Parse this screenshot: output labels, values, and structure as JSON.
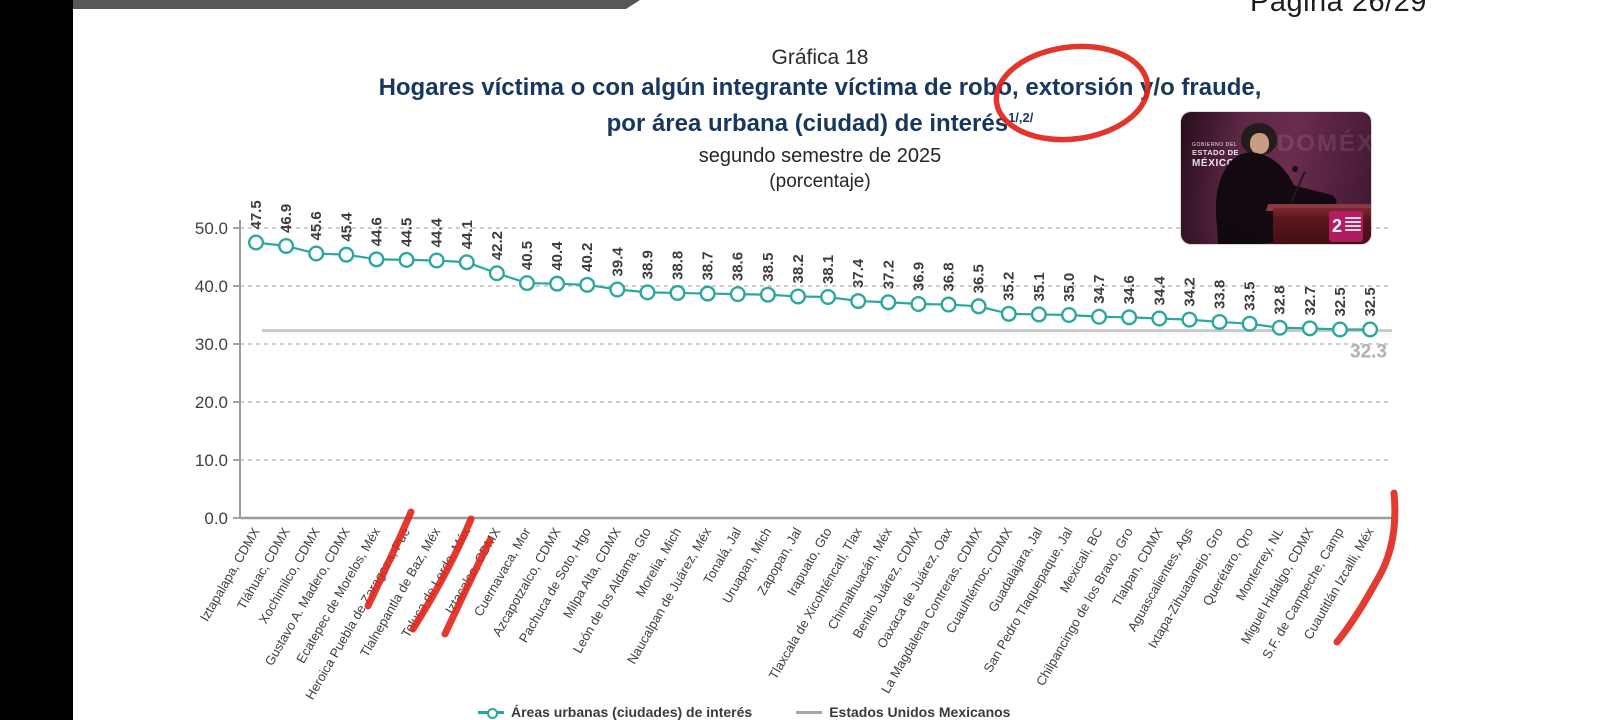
{
  "page": {
    "number_label": "Página 26/29"
  },
  "title": {
    "pretitle": "Gráfica 18",
    "line1": "Hogares víctima o con algún integrante víctima de robo, extorsión y/o fraude,",
    "line2": "por área urbana (ciudad) de interés",
    "footnote_marks": "1/,2/",
    "subtitle": "segundo semestre de 2025",
    "unit": "(porcentaje)"
  },
  "legend": {
    "series": "Áreas urbanas (ciudades) de interés",
    "reference": "Estados Unidos Mexicanos"
  },
  "photo": {
    "caption_lines": [
      "GOBIERNO DEL",
      "ESTADO DE",
      "MÉXICO"
    ],
    "sign": "2"
  },
  "annotations": {
    "circled_word": "extorsión",
    "underlined_categories": [
      "Ecatepec de Morelos, Méx",
      "Tlalnepantla de Baz, Méx",
      "Toluca de Lerdo, Méx",
      "Cuautitlán Izcalli, Méx"
    ],
    "marker_color": "#e0251b"
  },
  "chart_data": {
    "type": "line",
    "title": "Hogares víctima o con algún integrante víctima de robo, extorsión y/o fraude, por área urbana (ciudad) de interés, segundo semestre de 2025 (porcentaje)",
    "categories": [
      "Iztapalapa, CDMX",
      "Tláhuac, CDMX",
      "Xochimilco, CDMX",
      "Gustavo A. Madero, CDMX",
      "Ecatepec de Morelos, Méx",
      "Heroica Puebla de Zaragoza, Pue",
      "Tlalnepantla de Baz, Méx",
      "Toluca de Lerdo, Méx",
      "Iztacalco, CDMX",
      "Cuernavaca, Mor",
      "Azcapotzalco, CDMX",
      "Pachuca de Soto, Hgo",
      "Milpa Alta, CDMX",
      "León de los Aldama, Gto",
      "Morelia, Mich",
      "Naucalpan de Juárez, Méx",
      "Tonalá, Jal",
      "Uruapan, Mich",
      "Zapopan, Jal",
      "Irapuato, Gto",
      "Tlaxcala de Xicohténcatl, Tlax",
      "Chimalhuacán, Méx",
      "Benito Juárez, CDMX",
      "Oaxaca de Juárez, Oax",
      "La Magdalena Contreras, CDMX",
      "Cuauhtémoc, CDMX",
      "Guadalajara, Jal",
      "San Pedro Tlaquepaque, Jal",
      "Mexicali, BC",
      "Chilpancingo de los Bravo, Gro",
      "Tlalpan, CDMX",
      "Aguascalientes, Ags",
      "Ixtapa-Zihuatanejo, Gro",
      "Querétaro, Qro",
      "Monterrey, NL",
      "Miguel Hidalgo, CDMX",
      "S.F. de Campeche, Camp",
      "Cuautitlán Izcalli, Méx"
    ],
    "values": [
      47.5,
      46.9,
      45.6,
      45.4,
      44.6,
      44.5,
      44.4,
      44.1,
      42.2,
      40.5,
      40.4,
      40.2,
      39.4,
      38.9,
      38.8,
      38.7,
      38.6,
      38.5,
      38.2,
      38.1,
      37.4,
      37.2,
      36.9,
      36.8,
      36.5,
      35.2,
      35.1,
      35.0,
      34.7,
      34.6,
      34.4,
      34.2,
      33.8,
      33.5,
      32.8,
      32.7,
      32.5,
      32.5
    ],
    "reference_line": {
      "value": 32.3,
      "label": "32.3"
    },
    "ylim": [
      0,
      50
    ],
    "yticks": [
      "50.0",
      "40.0",
      "30.0",
      "20.0",
      "10.0",
      "0.0"
    ],
    "xlabel": "",
    "ylabel": "",
    "grid": "horizontal-dashed",
    "legend_position": "bottom",
    "series_color": "#2aa7a0",
    "reference_color": "#c9c9c9"
  }
}
